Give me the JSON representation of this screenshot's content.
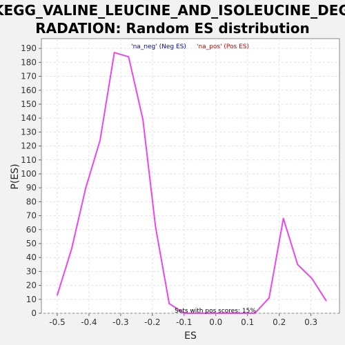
{
  "title_line1": "KEGG_VALINE_LEUCINE_AND_ISOLEUCINE_DEG",
  "title_line2": "RADATION: Random ES distribution",
  "chart_data": {
    "type": "line",
    "title": "KEGG_VALINE_LEUCINE_AND_ISOLEUCINE_DEGRADATION: Random ES distribution",
    "xlabel": "ES",
    "ylabel": "P(ES)",
    "xlim": [
      -0.55,
      0.39
    ],
    "ylim": [
      0,
      197
    ],
    "x_ticks": [
      -0.5,
      -0.4,
      -0.3,
      -0.2,
      -0.1,
      0.0,
      0.1,
      0.2,
      0.3
    ],
    "x_tick_labels": [
      "-0.5",
      "-0.4",
      "-0.3",
      "-0.2",
      "-0.1",
      "0.0",
      "0.1",
      "0.2",
      "0.3"
    ],
    "y_ticks": [
      0,
      10,
      20,
      30,
      40,
      50,
      60,
      70,
      80,
      90,
      100,
      110,
      120,
      130,
      140,
      150,
      160,
      170,
      180,
      190
    ],
    "grid": true,
    "legend": {
      "placement": "top",
      "entries": [
        {
          "label": "'na_neg' (Neg ES)",
          "color": "#0000cc"
        },
        {
          "label": "'na_pos' (Pos ES)",
          "color": "#cc0000"
        }
      ]
    },
    "annotation": "Sets with pos scores: 15%",
    "series": [
      {
        "color": "#ee44ee",
        "x": [
          -0.5,
          -0.455,
          -0.41,
          -0.365,
          -0.32,
          -0.275,
          -0.23,
          -0.19,
          -0.147,
          -0.1,
          -0.057,
          -0.012,
          0.033,
          0.078,
          0.123,
          0.168,
          0.213,
          0.258,
          0.303,
          0.348
        ],
        "y": [
          13,
          46,
          90,
          124,
          187,
          184,
          139,
          62,
          7,
          0,
          0,
          0,
          0,
          0,
          0,
          11,
          68,
          35,
          25,
          9
        ]
      }
    ]
  }
}
